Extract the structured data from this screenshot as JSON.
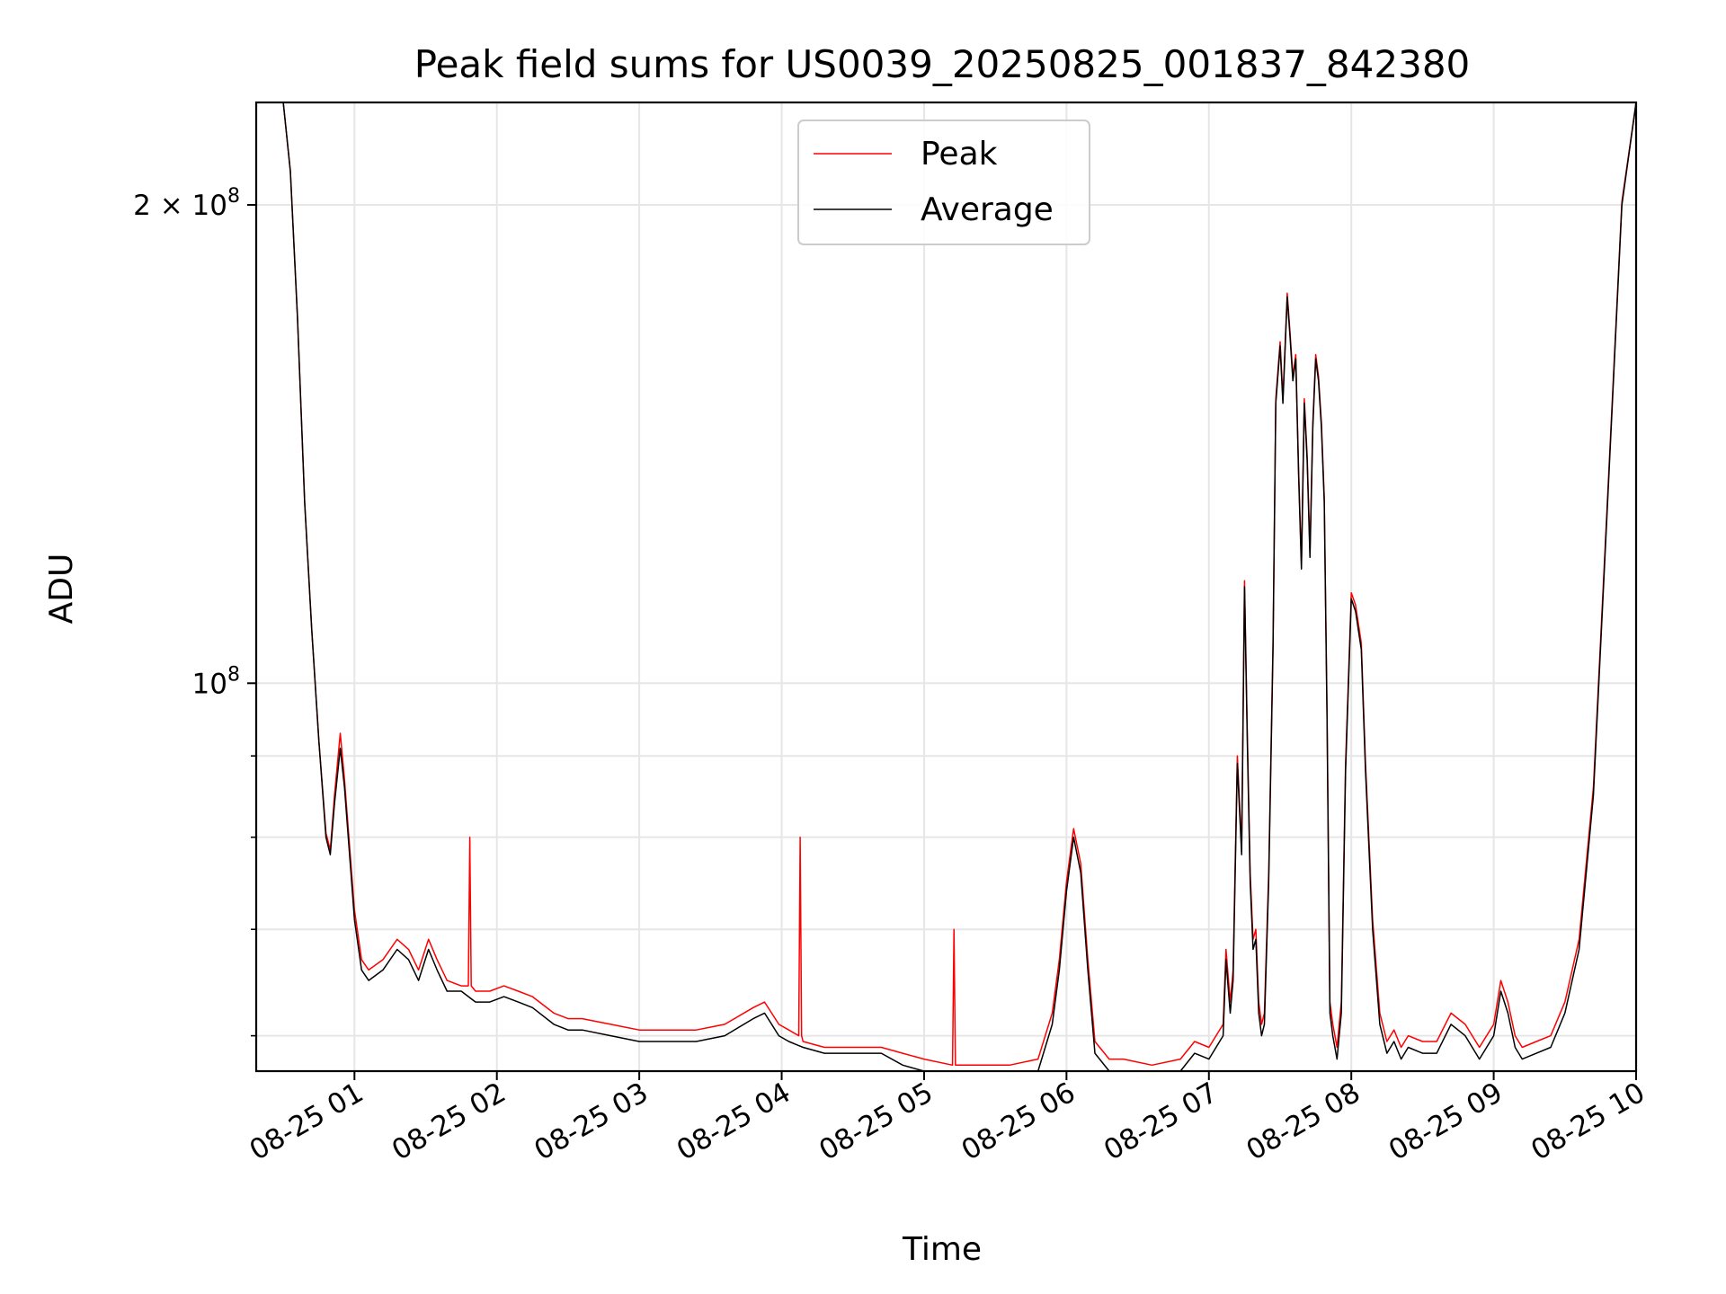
{
  "chart_data": {
    "type": "line",
    "title": "Peak field sums for US0039_20250825_001837_842380",
    "xlabel": "Time",
    "ylabel": "ADU",
    "x_unit": "hours since 2025-08-25 00:00",
    "xlim": [
      0.31,
      10.0
    ],
    "ylim": [
      57000000,
      232000000
    ],
    "yscale": "log",
    "grid": true,
    "legend_position": "top-center",
    "x_ticks": [
      {
        "value": 1,
        "label": "08-25 01"
      },
      {
        "value": 2,
        "label": "08-25 02"
      },
      {
        "value": 3,
        "label": "08-25 03"
      },
      {
        "value": 4,
        "label": "08-25 04"
      },
      {
        "value": 5,
        "label": "08-25 05"
      },
      {
        "value": 6,
        "label": "08-25 06"
      },
      {
        "value": 7,
        "label": "08-25 07"
      },
      {
        "value": 8,
        "label": "08-25 08"
      },
      {
        "value": 9,
        "label": "08-25 09"
      },
      {
        "value": 10,
        "label": "08-25 10"
      }
    ],
    "y_major_ticks": [
      {
        "value": 100000000,
        "base": "10",
        "exp": "8"
      },
      {
        "value": 200000000,
        "base": "2 × 10",
        "exp": "8"
      }
    ],
    "y_minor_ticks": [
      60000000,
      70000000,
      80000000,
      90000000
    ],
    "series": [
      {
        "name": "Average",
        "color": "#000000",
        "x": [
          0.31,
          0.5,
          0.55,
          0.6,
          0.65,
          0.7,
          0.75,
          0.8,
          0.83,
          0.86,
          0.9,
          0.93,
          0.97,
          1.0,
          1.05,
          1.1,
          1.2,
          1.3,
          1.38,
          1.45,
          1.52,
          1.58,
          1.65,
          1.75,
          1.85,
          1.95,
          2.05,
          2.15,
          2.25,
          2.4,
          2.5,
          2.6,
          2.8,
          3.0,
          3.2,
          3.4,
          3.6,
          3.8,
          3.88,
          3.93,
          3.98,
          4.05,
          4.15,
          4.3,
          4.5,
          4.7,
          4.85,
          5.0,
          5.2,
          5.4,
          5.6,
          5.8,
          5.9,
          5.95,
          6.0,
          6.05,
          6.1,
          6.15,
          6.2,
          6.3,
          6.4,
          6.6,
          6.8,
          6.9,
          7.0,
          7.1,
          7.12,
          7.15,
          7.17,
          7.2,
          7.23,
          7.25,
          7.27,
          7.29,
          7.31,
          7.33,
          7.35,
          7.37,
          7.39,
          7.42,
          7.45,
          7.47,
          7.5,
          7.52,
          7.55,
          7.57,
          7.59,
          7.61,
          7.63,
          7.65,
          7.67,
          7.69,
          7.71,
          7.73,
          7.75,
          7.77,
          7.79,
          7.81,
          7.83,
          7.85,
          7.87,
          7.9,
          7.93,
          7.96,
          8.0,
          8.03,
          8.07,
          8.1,
          8.15,
          8.2,
          8.25,
          8.3,
          8.35,
          8.4,
          8.5,
          8.6,
          8.7,
          8.8,
          8.9,
          9.0,
          9.05,
          9.1,
          9.15,
          9.2,
          9.3,
          9.4,
          9.5,
          9.6,
          9.7,
          9.8,
          9.9,
          10.0
        ],
        "values": [
          232000000,
          232000000,
          210000000,
          170000000,
          130000000,
          108000000,
          92000000,
          80000000,
          78000000,
          84000000,
          91000000,
          86000000,
          77000000,
          71000000,
          66000000,
          65000000,
          66000000,
          68000000,
          67000000,
          65000000,
          68000000,
          66000000,
          64000000,
          64000000,
          63000000,
          63000000,
          63500000,
          63000000,
          62500000,
          61000000,
          60500000,
          60500000,
          60000000,
          59500000,
          59500000,
          59500000,
          60000000,
          61500000,
          62000000,
          61000000,
          60000000,
          59500000,
          59000000,
          58500000,
          58500000,
          58500000,
          57500000,
          57000000,
          56500000,
          56500000,
          56500000,
          57000000,
          61000000,
          66000000,
          74000000,
          80000000,
          76000000,
          66000000,
          58500000,
          57000000,
          57000000,
          56500000,
          57000000,
          58500000,
          58000000,
          60000000,
          67000000,
          62000000,
          65000000,
          89000000,
          78000000,
          115000000,
          92000000,
          75000000,
          68000000,
          69000000,
          62000000,
          60000000,
          61000000,
          75000000,
          105000000,
          150000000,
          163000000,
          150000000,
          175000000,
          165000000,
          155000000,
          160000000,
          135000000,
          118000000,
          150000000,
          138000000,
          120000000,
          145000000,
          160000000,
          155000000,
          145000000,
          130000000,
          95000000,
          62000000,
          60000000,
          58000000,
          62000000,
          88000000,
          113000000,
          111000000,
          105000000,
          88000000,
          70000000,
          61000000,
          58500000,
          59500000,
          58000000,
          59000000,
          58500000,
          58500000,
          61000000,
          60000000,
          58000000,
          60000000,
          64000000,
          62000000,
          59000000,
          58000000,
          58500000,
          59000000,
          62000000,
          68000000,
          85000000,
          130000000,
          200000000,
          232000000
        ]
      },
      {
        "name": "Peak",
        "color": "#ff0000",
        "x": [
          0.31,
          0.5,
          0.55,
          0.6,
          0.65,
          0.7,
          0.75,
          0.8,
          0.83,
          0.86,
          0.9,
          0.93,
          0.97,
          1.0,
          1.05,
          1.1,
          1.2,
          1.3,
          1.38,
          1.45,
          1.52,
          1.58,
          1.65,
          1.75,
          1.8,
          1.81,
          1.82,
          1.85,
          1.95,
          2.05,
          2.15,
          2.25,
          2.4,
          2.5,
          2.6,
          2.8,
          3.0,
          3.2,
          3.4,
          3.6,
          3.8,
          3.88,
          3.93,
          3.98,
          4.05,
          4.12,
          4.13,
          4.14,
          4.15,
          4.3,
          4.5,
          4.7,
          4.85,
          5.0,
          5.2,
          5.21,
          5.22,
          5.23,
          5.4,
          5.6,
          5.8,
          5.9,
          5.95,
          6.0,
          6.05,
          6.1,
          6.15,
          6.2,
          6.3,
          6.4,
          6.6,
          6.8,
          6.9,
          7.0,
          7.1,
          7.12,
          7.15,
          7.17,
          7.2,
          7.23,
          7.25,
          7.27,
          7.29,
          7.31,
          7.33,
          7.35,
          7.37,
          7.39,
          7.42,
          7.45,
          7.47,
          7.5,
          7.52,
          7.55,
          7.57,
          7.59,
          7.61,
          7.63,
          7.65,
          7.67,
          7.69,
          7.71,
          7.73,
          7.75,
          7.77,
          7.79,
          7.81,
          7.83,
          7.85,
          7.87,
          7.9,
          7.93,
          7.96,
          8.0,
          8.03,
          8.07,
          8.1,
          8.15,
          8.2,
          8.25,
          8.3,
          8.35,
          8.4,
          8.5,
          8.6,
          8.7,
          8.8,
          8.9,
          9.0,
          9.05,
          9.1,
          9.15,
          9.2,
          9.3,
          9.4,
          9.5,
          9.6,
          9.7,
          9.8,
          9.9,
          10.0
        ],
        "values": [
          232000000,
          232000000,
          210000000,
          170000000,
          130000000,
          108000000,
          92000000,
          80500000,
          78500000,
          85000000,
          93000000,
          87000000,
          78000000,
          72000000,
          67000000,
          66000000,
          67000000,
          69000000,
          68000000,
          66000000,
          69000000,
          67000000,
          65000000,
          64500000,
          64500000,
          80000000,
          64500000,
          64000000,
          64000000,
          64500000,
          64000000,
          63500000,
          62000000,
          61500000,
          61500000,
          61000000,
          60500000,
          60500000,
          60500000,
          61000000,
          62500000,
          63000000,
          62000000,
          61000000,
          60500000,
          60000000,
          80000000,
          60000000,
          59500000,
          59000000,
          59000000,
          59000000,
          58500000,
          58000000,
          57500000,
          70000000,
          57500000,
          57500000,
          57500000,
          57500000,
          58000000,
          62000000,
          67000000,
          75000000,
          81000000,
          77000000,
          67000000,
          59500000,
          58000000,
          58000000,
          57500000,
          58000000,
          59500000,
          59000000,
          61000000,
          68000000,
          63000000,
          66000000,
          90000000,
          79000000,
          116000000,
          93000000,
          76000000,
          69000000,
          70000000,
          63000000,
          61000000,
          62000000,
          76000000,
          106000000,
          151000000,
          164000000,
          151000000,
          176000000,
          166000000,
          156000000,
          161000000,
          136000000,
          119000000,
          151000000,
          139000000,
          121000000,
          146000000,
          161000000,
          156000000,
          146000000,
          131000000,
          96000000,
          63000000,
          61000000,
          59000000,
          63000000,
          89000000,
          114000000,
          112000000,
          106000000,
          89000000,
          71000000,
          62000000,
          59500000,
          60500000,
          59000000,
          60000000,
          59500000,
          59500000,
          62000000,
          61000000,
          59000000,
          61000000,
          65000000,
          63000000,
          60000000,
          59000000,
          59500000,
          60000000,
          63000000,
          69000000,
          86000000,
          131000000,
          201000000,
          232000000
        ]
      }
    ]
  }
}
